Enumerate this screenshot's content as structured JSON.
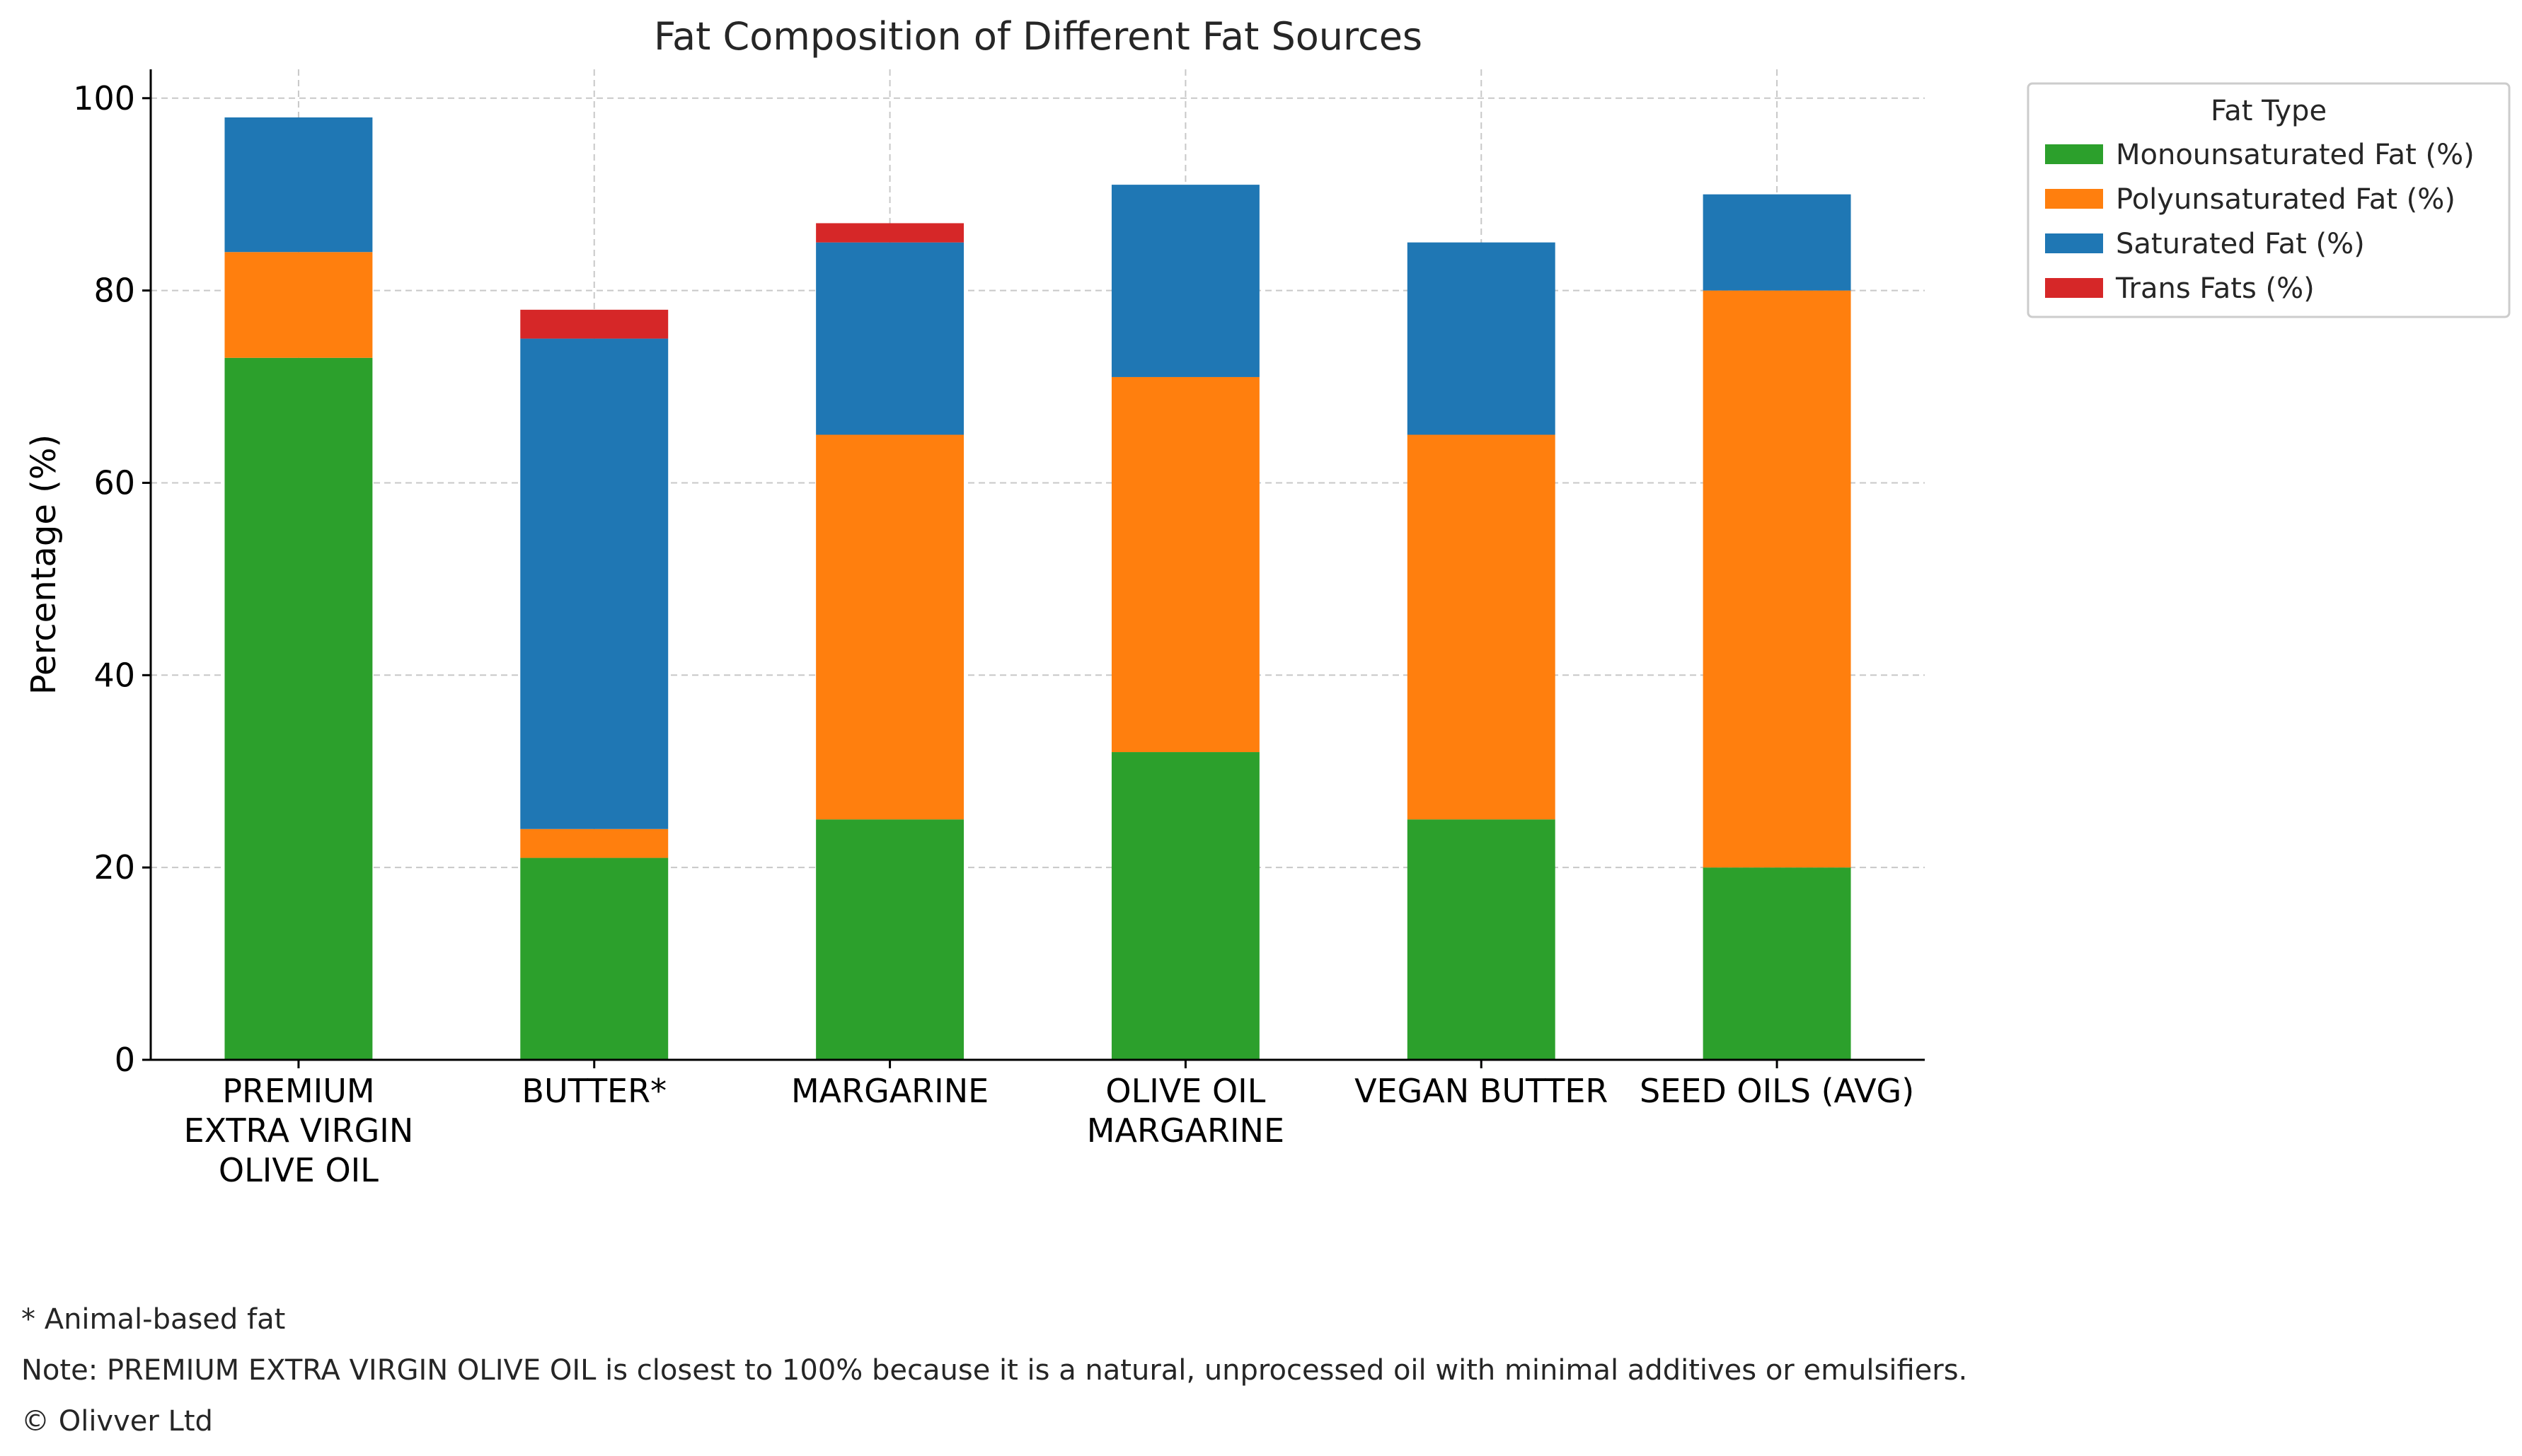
{
  "chart_data": {
    "type": "bar",
    "stacked": true,
    "title": "Fat Composition of Different Fat Sources",
    "xlabel": "",
    "ylabel": "Percentage (%)",
    "ylim": [
      0,
      103
    ],
    "yticks": [
      0,
      20,
      40,
      60,
      80,
      100
    ],
    "grid": true,
    "legend_title": "Fat Type",
    "legend_position": "upper-right-outside",
    "categories": [
      [
        "PREMIUM",
        "EXTRA VIRGIN",
        "OLIVE OIL"
      ],
      [
        "BUTTER*"
      ],
      [
        "MARGARINE"
      ],
      [
        "OLIVE OIL",
        "MARGARINE"
      ],
      [
        "VEGAN BUTTER"
      ],
      [
        "SEED OILS (AVG)"
      ]
    ],
    "series": [
      {
        "name": "Monounsaturated Fat (%)",
        "color": "#2ca02c",
        "values": [
          73,
          21,
          25,
          32,
          25,
          20
        ]
      },
      {
        "name": "Polyunsaturated Fat (%)",
        "color": "#ff7f0e",
        "values": [
          11,
          3,
          40,
          39,
          40,
          60
        ]
      },
      {
        "name": "Saturated Fat (%)",
        "color": "#1f77b4",
        "values": [
          14,
          51,
          20,
          20,
          20,
          10
        ]
      },
      {
        "name": "Trans Fats (%)",
        "color": "#d62728",
        "values": [
          0,
          3,
          2,
          0,
          0,
          0
        ]
      }
    ]
  },
  "footnotes": {
    "animal": "* Animal-based fat",
    "note": "Note: PREMIUM EXTRA VIRGIN OLIVE OIL is closest to 100% because it is a natural, unprocessed oil with minimal additives or emulsifiers.",
    "copyright": "© Olivver Ltd"
  }
}
